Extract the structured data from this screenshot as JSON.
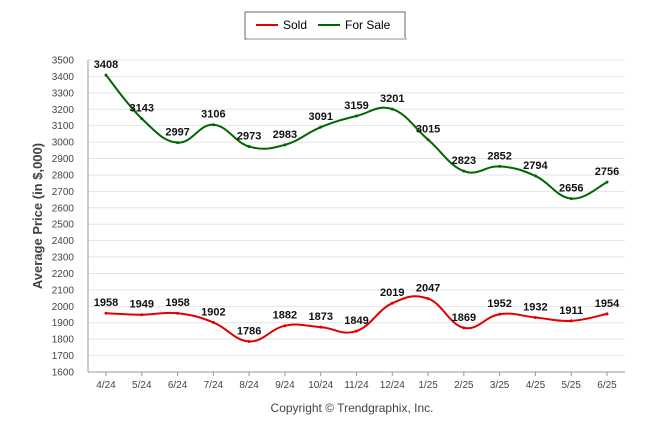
{
  "chart_data": {
    "type": "line",
    "ylabel": "Average Price (in $,000)",
    "footer": "Copyright © Trendgraphix, Inc.",
    "categories": [
      "4/24",
      "5/24",
      "6/24",
      "7/24",
      "8/24",
      "9/24",
      "10/24",
      "11/24",
      "12/24",
      "1/25",
      "2/25",
      "3/25",
      "4/25",
      "5/25",
      "6/25"
    ],
    "ylim": [
      1600,
      3500
    ],
    "ytick_step": 100,
    "grid": true,
    "legend_position": "top-center",
    "series": [
      {
        "name": "Sold",
        "color": "#e00000",
        "values": [
          1958,
          1949,
          1958,
          1902,
          1786,
          1882,
          1873,
          1849,
          2019,
          2047,
          1869,
          1952,
          1932,
          1911,
          1954
        ]
      },
      {
        "name": "For Sale",
        "color": "#006600",
        "values": [
          3408,
          3143,
          2997,
          3106,
          2973,
          2983,
          3091,
          3159,
          3201,
          3015,
          2823,
          2852,
          2794,
          2656,
          2756
        ]
      }
    ]
  }
}
